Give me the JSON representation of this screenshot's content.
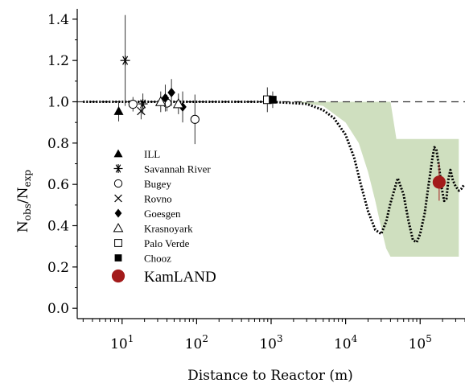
{
  "chart_data": {
    "type": "scatter",
    "xlabel": "Distance to Reactor (m)",
    "ylabel_main": "N",
    "ylabel_sub1": "obs",
    "ylabel_mid": "/N",
    "ylabel_sub2": "exp",
    "x_scale": "log",
    "xlim": [
      2.5,
      400000
    ],
    "ylim": [
      -0.05,
      1.45
    ],
    "y_ticks": [
      "0.0",
      "0.2",
      "0.4",
      "0.6",
      "0.8",
      "1.0",
      "1.2",
      "1.4"
    ],
    "x_tick_base": "10",
    "x_tick_exps": [
      "1",
      "2",
      "3",
      "4",
      "5"
    ],
    "reference_line_y": 1.0,
    "band_color": "#cfdfbf",
    "kamland_color": "#a31b1b",
    "series": [
      {
        "name": "ILL",
        "marker": "triangle-filled",
        "points": [
          {
            "x": 9,
            "y": 0.955,
            "err": 0.05
          }
        ]
      },
      {
        "name": "Savannah River",
        "marker": "asterisk",
        "points": [
          {
            "x": 11,
            "y": 1.2,
            "err": 0.22
          },
          {
            "x": 19,
            "y": 0.99,
            "err": 0.05
          }
        ]
      },
      {
        "name": "Bugey",
        "marker": "circle-open",
        "points": [
          {
            "x": 14,
            "y": 0.988,
            "err": 0.035
          },
          {
            "x": 40,
            "y": 0.994,
            "err": 0.04
          },
          {
            "x": 95,
            "y": 0.915,
            "err": 0.12
          }
        ]
      },
      {
        "name": "Rovno",
        "marker": "x",
        "points": [
          {
            "x": 18,
            "y": 0.955,
            "err": 0.04
          }
        ]
      },
      {
        "name": "Goesgen",
        "marker": "diamond-filled",
        "points": [
          {
            "x": 38,
            "y": 1.018,
            "err": 0.065
          },
          {
            "x": 46,
            "y": 1.045,
            "err": 0.065
          },
          {
            "x": 65,
            "y": 0.975,
            "err": 0.075
          }
        ]
      },
      {
        "name": "Krasnoyark",
        "marker": "triangle-open",
        "points": [
          {
            "x": 33,
            "y": 1.0,
            "err": 0.05
          },
          {
            "x": 57,
            "y": 0.99,
            "err": 0.05
          }
        ]
      },
      {
        "name": "Palo Verde",
        "marker": "square-open",
        "points": [
          {
            "x": 890,
            "y": 1.01,
            "err": 0.06
          }
        ]
      },
      {
        "name": "Chooz",
        "marker": "square-filled",
        "points": [
          {
            "x": 1050,
            "y": 1.01,
            "err": 0.04
          }
        ]
      },
      {
        "name": "KamLAND",
        "marker": "circle-filled-large",
        "points": [
          {
            "x": 180000,
            "y": 0.611,
            "err": 0.09
          }
        ]
      }
    ],
    "oscillation_curve": [
      [
        3,
        1.0
      ],
      [
        1000,
        1.0
      ],
      [
        3000,
        0.99
      ],
      [
        5000,
        0.96
      ],
      [
        7000,
        0.92
      ],
      [
        10000,
        0.84
      ],
      [
        13000,
        0.73
      ],
      [
        16000,
        0.6
      ],
      [
        20000,
        0.47
      ],
      [
        25000,
        0.38
      ],
      [
        30000,
        0.36
      ],
      [
        35000,
        0.42
      ],
      [
        40000,
        0.51
      ],
      [
        50000,
        0.63
      ],
      [
        60000,
        0.55
      ],
      [
        70000,
        0.42
      ],
      [
        80000,
        0.33
      ],
      [
        90000,
        0.32
      ],
      [
        100000,
        0.36
      ],
      [
        115000,
        0.46
      ],
      [
        130000,
        0.6
      ],
      [
        145000,
        0.72
      ],
      [
        155000,
        0.78
      ],
      [
        165000,
        0.77
      ],
      [
        180000,
        0.68
      ],
      [
        195000,
        0.58
      ],
      [
        210000,
        0.52
      ],
      [
        225000,
        0.53
      ],
      [
        240000,
        0.63
      ],
      [
        255000,
        0.67
      ],
      [
        275000,
        0.62
      ],
      [
        300000,
        0.59
      ],
      [
        330000,
        0.57
      ],
      [
        360000,
        0.58
      ],
      [
        390000,
        0.6
      ]
    ],
    "uncertainty_band": [
      [
        3,
        1.0
      ],
      [
        2000,
        1.0
      ],
      [
        5000,
        0.98
      ],
      [
        10000,
        0.9
      ],
      [
        15000,
        0.8
      ],
      [
        20000,
        0.66
      ],
      [
        25000,
        0.52
      ],
      [
        30000,
        0.39
      ],
      [
        35000,
        0.29
      ],
      [
        40000,
        0.25
      ],
      [
        330000,
        0.25
      ],
      [
        330000,
        0.82
      ],
      [
        48000,
        0.82
      ],
      [
        40000,
        1.0
      ],
      [
        3,
        1.0
      ]
    ]
  }
}
